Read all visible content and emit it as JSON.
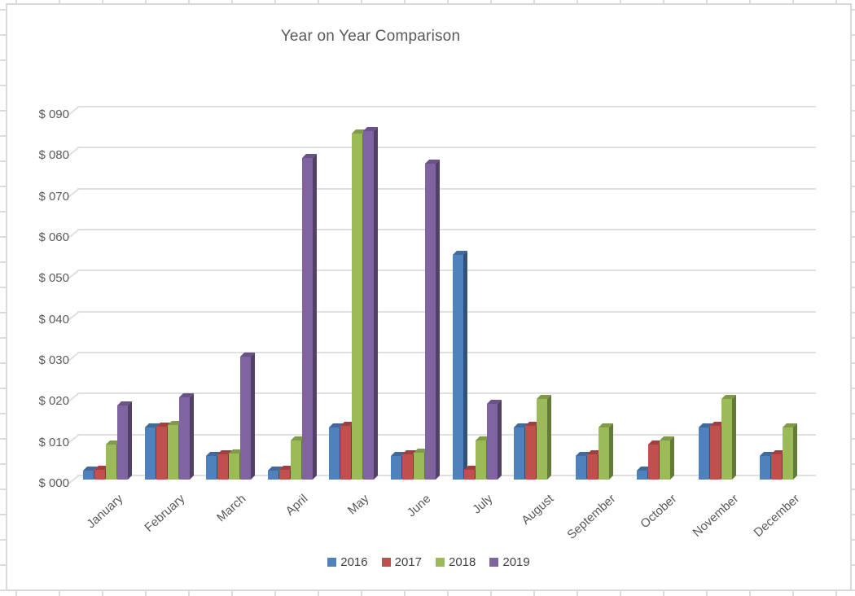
{
  "chart": {
    "title": "Year on Year Comparison"
  },
  "chart_data": {
    "type": "bar",
    "subtype": "3d-clustered-column",
    "title": "Year on Year Comparison",
    "categories": [
      "January",
      "February",
      "March",
      "April",
      "May",
      "June",
      "July",
      "August",
      "September",
      "October",
      "November",
      "December"
    ],
    "series": [
      {
        "name": "2016",
        "color": "#4F81BD",
        "values": [
          2.2,
          12.7,
          5.8,
          2.2,
          12.7,
          5.8,
          54.8,
          12.7,
          5.8,
          2.2,
          12.7,
          5.8
        ]
      },
      {
        "name": "2017",
        "color": "#C0504D",
        "values": [
          2.4,
          13.0,
          6.1,
          2.4,
          13.2,
          6.2,
          2.4,
          13.2,
          6.2,
          8.5,
          13.2,
          6.2
        ]
      },
      {
        "name": "2018",
        "color": "#9BBB59",
        "values": [
          8.5,
          13.3,
          6.3,
          9.5,
          84.5,
          6.5,
          9.5,
          19.7,
          12.8,
          9.5,
          19.7,
          12.8
        ]
      },
      {
        "name": "2019",
        "color": "#8064A2",
        "values": [
          18,
          20,
          30,
          78.5,
          85,
          77,
          18.5,
          null,
          null,
          null,
          null,
          null
        ]
      }
    ],
    "ylim": [
      0,
      90
    ],
    "ytick_step": 10,
    "ytick_labels": [
      "$ 000",
      "$ 010",
      "$ 020",
      "$ 030",
      "$ 040",
      "$ 050",
      "$ 060",
      "$ 070",
      "$ 080",
      "$ 090"
    ],
    "legend_position": "bottom",
    "legend_entries": [
      "2016",
      "2017",
      "2018",
      "2019"
    ],
    "grid": true,
    "bar_faces_3d": {
      "2016": {
        "front": "#4F81BD",
        "top": "#416A9B",
        "side": "#31517A"
      },
      "2017": {
        "front": "#C0504D",
        "top": "#9E403E",
        "side": "#7B3432"
      },
      "2018": {
        "front": "#9BBB59",
        "top": "#7F9A49",
        "side": "#637A39"
      },
      "2019": {
        "front": "#8064A2",
        "top": "#695285",
        "side": "#514067"
      }
    },
    "colors": {
      "gridline": "#DFDFDF",
      "axis_text": "#595959",
      "title_text": "#595959",
      "legend_text": "#404040",
      "chart_border": "#D9D9D9",
      "sheet_line": "#DCDCDC",
      "chart_background": "#FFFFFF"
    }
  }
}
